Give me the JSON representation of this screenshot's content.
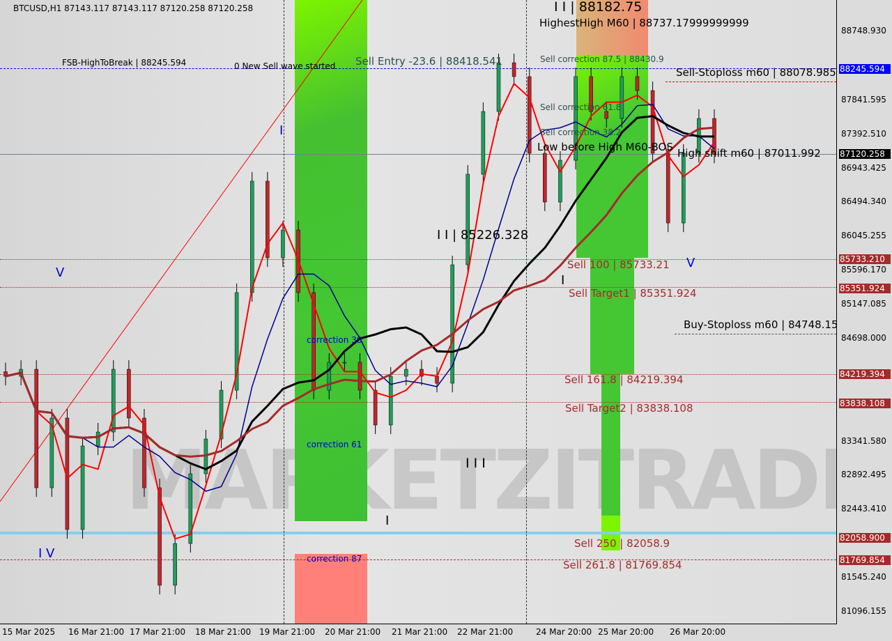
{
  "header": {
    "symbol_info": "BTCUSD,H1  87143.117 87143.117 87120.258 87120.258"
  },
  "watermark": "MARKETZITRADE",
  "colors": {
    "bull": "#1f9e5a",
    "bear": "#c0262c",
    "ma_fast": "#ff0000",
    "ma_mid": "#00008b",
    "ma_slow": "#000000",
    "ma_long": "#a52a2a",
    "zone_green": "#44c733",
    "zone_red": "#ff8079",
    "price_tag_blue": "#0000ff",
    "price_tag_red": "#a52a2a"
  },
  "labels": {
    "fsb": "FSB-HighToBreak | 88245.594",
    "new_sell": "0 New Sell wave started",
    "sell_entry": "Sell Entry -23.6 | 88418.541",
    "wave3_top": "I I | 88182.75",
    "highest_high": "HighestHigh   M60 | 88737.17999999999",
    "sell_corr_875": "Sell correction 87.5 | 88430.9",
    "sell_corr_618": "Sell correction 61.8",
    "sell_corr_382": "Sell correction 38.2",
    "sell_stoploss": "Sell-Stoploss m60 | 88078.985",
    "low_before_high": "Low before High   M60-BOS",
    "high_shift": "High shift m60 | 87011.992",
    "wave2": "I I | 85226.328",
    "sell100": "Sell 100 | 85733.21",
    "sell_target1": "Sell Target1 | 85351.924",
    "buy_stoploss": "Buy-Stoploss m60 | 84748.155",
    "sell1618": "Sell 161.8 | 84219.394",
    "sell_target2": "Sell Target2 | 83838.108",
    "sell250": "Sell  250 | 82058.9",
    "sell2618": "Sell  261.8 | 81769.854",
    "corr38": "correction 38",
    "corr61": "correction 61",
    "corr87": "correction 87",
    "wave_I": "I",
    "wave_III": "I I I",
    "wave_IV": "I V",
    "wave_V": "V",
    "wave_I2": "I",
    "wave_I3": "I",
    "wave_V2": "V"
  },
  "chart_data": {
    "type": "candlestick",
    "symbol": "BTCUSD",
    "timeframe": "H1",
    "ylim": [
      80880,
      88990
    ],
    "x_ticks": [
      "15 Mar 2025",
      "16 Mar 21:00",
      "17 Mar 21:00",
      "18 Mar 21:00",
      "19 Mar 21:00",
      "20 Mar 21:00",
      "21 Mar 21:00",
      "22 Mar 21:00",
      "24 Mar 20:00",
      "25 Mar 20:00",
      "26 Mar 20:00"
    ],
    "y_ticks": [
      88748.93,
      87841.595,
      87392.51,
      86943.425,
      86494.34,
      86045.255,
      85596.17,
      85147.085,
      84698.0,
      83341.58,
      82892.495,
      82443.41,
      81545.24,
      81096.155
    ],
    "price_tags": [
      {
        "value": 88245.594,
        "label": "88245.594",
        "color": "blue"
      },
      {
        "value": 87120.258,
        "label": "87120.258",
        "color": "black"
      },
      {
        "value": 85733.21,
        "label": "85733.210",
        "color": "red"
      },
      {
        "value": 85351.924,
        "label": "85351.924",
        "color": "red"
      },
      {
        "value": 84219.394,
        "label": "84219.394",
        "color": "red"
      },
      {
        "value": 83838.108,
        "label": "83838.108",
        "color": "red"
      },
      {
        "value": 82058.9,
        "label": "82058.900",
        "color": "red"
      },
      {
        "value": 81769.854,
        "label": "81769.854",
        "color": "red"
      }
    ],
    "closes_approx": [
      84192,
      84284,
      82722,
      83641,
      82171,
      83273,
      83457,
      84284,
      83641,
      82722,
      81436,
      81987,
      82906,
      83365,
      84008,
      85295,
      86765,
      85754,
      86121,
      85295,
      84008,
      84376,
      84376,
      84008,
      83549,
      84192,
      84284,
      84192,
      84100,
      85662,
      86856,
      87683,
      88326,
      88143,
      87132,
      86489,
      87040,
      88143,
      87683,
      87591,
      88143,
      87959,
      87132,
      86213,
      87132,
      87591,
      87120.258
    ]
  }
}
